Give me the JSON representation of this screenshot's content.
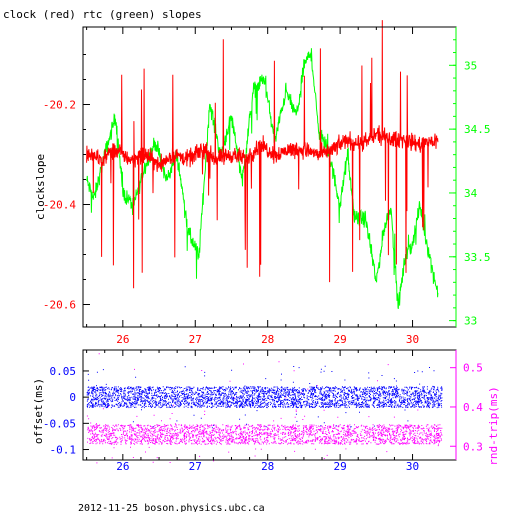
{
  "colors": {
    "clock": "#ff0000",
    "rtc": "#00ff00",
    "offset": "#0000ff",
    "roundtrip": "#ff00ff",
    "axis": "#000000"
  },
  "footer": "2012-11-25  boson.physics.ubc.ca",
  "chart_data": [
    {
      "type": "line",
      "title": "clock (red) rtc (green) slopes",
      "xlabel": "",
      "ylabel": "clockslope",
      "xlim": [
        25.45,
        30.6
      ],
      "ylim": [
        -20.645,
        -20.045
      ],
      "y2lim": [
        32.95,
        35.3
      ],
      "x_ticks": [
        "26",
        "27",
        "28",
        "29",
        "30"
      ],
      "y_ticks": [
        "-20.2",
        "-20.4",
        "-20.6"
      ],
      "y2_ticks": [
        "35",
        "34.5",
        "34",
        "33.5",
        "33"
      ],
      "series": [
        {
          "color": "red",
          "axis": "left",
          "x": [
            25.5,
            25.7,
            25.9,
            26.1,
            26.3,
            26.5,
            26.7,
            26.9,
            27.1,
            27.3,
            27.5,
            27.7,
            27.9,
            28.1,
            28.3,
            28.5,
            28.7,
            28.9,
            29.1,
            29.3,
            29.5,
            29.7,
            29.9,
            30.1,
            30.35
          ],
          "values": [
            -20.3,
            -20.31,
            -20.29,
            -20.31,
            -20.3,
            -20.32,
            -20.3,
            -20.31,
            -20.29,
            -20.31,
            -20.3,
            -20.31,
            -20.28,
            -20.3,
            -20.29,
            -20.29,
            -20.3,
            -20.29,
            -20.27,
            -20.28,
            -20.26,
            -20.27,
            -20.27,
            -20.28,
            -20.27
          ]
        },
        {
          "color": "green",
          "axis": "right",
          "x": [
            25.5,
            25.6,
            25.75,
            25.9,
            26.0,
            26.15,
            26.3,
            26.45,
            26.6,
            26.75,
            26.9,
            27.05,
            27.2,
            27.35,
            27.5,
            27.65,
            27.8,
            27.95,
            28.1,
            28.25,
            28.4,
            28.5,
            28.6,
            28.7,
            28.85,
            29.0,
            29.1,
            29.2,
            29.35,
            29.5,
            29.6,
            29.7,
            29.8,
            29.9,
            30.0,
            30.1,
            30.2,
            30.35
          ],
          "values": [
            34.1,
            33.95,
            34.3,
            34.6,
            34.0,
            33.9,
            34.2,
            34.4,
            34.1,
            34.3,
            33.7,
            33.5,
            34.7,
            34.3,
            34.6,
            34.1,
            34.8,
            34.9,
            34.4,
            34.8,
            34.6,
            35.0,
            35.1,
            34.5,
            34.3,
            33.9,
            34.3,
            33.8,
            33.8,
            33.3,
            33.7,
            33.9,
            33.1,
            33.5,
            33.6,
            33.9,
            33.6,
            33.2
          ]
        }
      ]
    },
    {
      "type": "scatter",
      "title": "",
      "xlabel": "",
      "ylabel": "offset(ms)",
      "y2label": "rnd-trip(ms)",
      "xlim": [
        25.45,
        30.6
      ],
      "ylim": [
        -0.12,
        0.09
      ],
      "y2lim": [
        0.265,
        0.545
      ],
      "x_ticks": [
        "26",
        "27",
        "28",
        "29",
        "30"
      ],
      "y_ticks": [
        "0.05",
        "0",
        "-0.05",
        "-0.1"
      ],
      "y2_ticks": [
        "0.5",
        "0.4",
        "0.3"
      ],
      "series": [
        {
          "color": "blue",
          "axis": "left",
          "x_range": [
            25.5,
            30.4
          ],
          "center": 0.0,
          "half_width": 0.02
        },
        {
          "color": "magenta",
          "axis": "right",
          "x_range": [
            25.5,
            30.4
          ],
          "center": 0.33,
          "half_width": 0.025
        }
      ]
    }
  ]
}
